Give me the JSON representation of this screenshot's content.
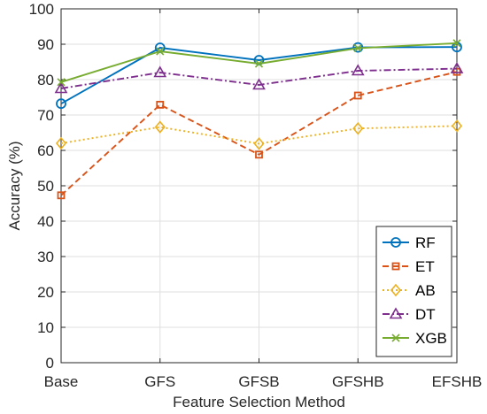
{
  "chart_data": {
    "type": "line",
    "title": "",
    "xlabel": "Feature Selection Method",
    "ylabel": "Accuracy (%)",
    "categories": [
      "Base",
      "GFS",
      "GFSB",
      "GFSHB",
      "EFSHB"
    ],
    "ylim": [
      0,
      100
    ],
    "yticks": [
      0,
      10,
      20,
      30,
      40,
      50,
      60,
      70,
      80,
      90,
      100
    ],
    "grid": true,
    "legend_position": "bottom-right",
    "series": [
      {
        "name": "RF",
        "values": [
          73.2,
          89.0,
          85.5,
          89.1,
          89.2
        ],
        "color": "#0072BD",
        "line": "solid",
        "marker": "circle"
      },
      {
        "name": "ET",
        "values": [
          47.3,
          72.9,
          58.8,
          75.5,
          82.2
        ],
        "color": "#D95319",
        "line": "dashed",
        "marker": "square"
      },
      {
        "name": "AB",
        "values": [
          62.0,
          66.6,
          61.9,
          66.2,
          66.9
        ],
        "color": "#EDB120",
        "line": "dotted",
        "marker": "diamond"
      },
      {
        "name": "DT",
        "values": [
          77.5,
          82.0,
          78.5,
          82.5,
          83.1
        ],
        "color": "#7E2F8E",
        "line": "dashdot",
        "marker": "triangle"
      },
      {
        "name": "XGB",
        "values": [
          79.3,
          88.0,
          84.5,
          88.9,
          90.3
        ],
        "color": "#77AC30",
        "line": "solid",
        "marker": "x"
      }
    ]
  }
}
